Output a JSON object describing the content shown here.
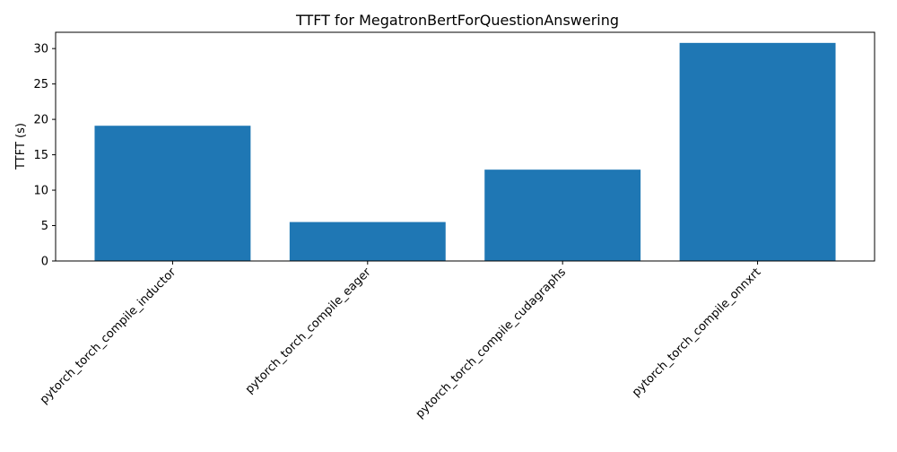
{
  "chart_data": {
    "type": "bar",
    "title": "TTFT for MegatronBertForQuestionAnswering",
    "xlabel": "",
    "ylabel": "TTFT (s)",
    "categories": [
      "pytorch_torch_compile_inductor",
      "pytorch_torch_compile_eager",
      "pytorch_torch_compile_cudagraphs",
      "pytorch_torch_compile_onnxrt"
    ],
    "values": [
      19.1,
      5.5,
      12.9,
      30.8
    ],
    "ylim": [
      0,
      32.3
    ],
    "yticks": [
      0,
      5,
      10,
      15,
      20,
      25,
      30
    ],
    "grid": false,
    "legend": "none",
    "bar_color": "#1f77b4"
  }
}
